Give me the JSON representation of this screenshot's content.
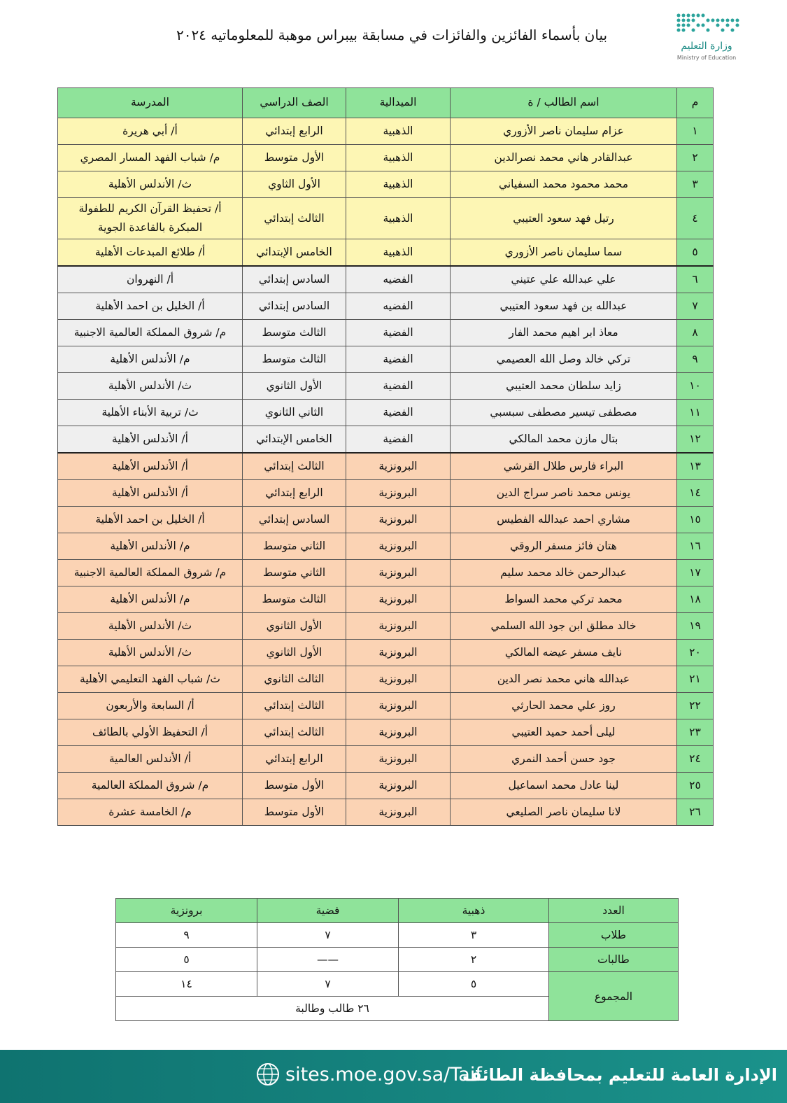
{
  "header": {
    "title": "بيان بأسماء الفائزين والفائزات في مسابقة بيبراس موهبة للمعلوماتيه ٢٠٢٤",
    "logo_ar": "وزارة التعليم",
    "logo_en": "Ministry of Education"
  },
  "table": {
    "columns": [
      "م",
      "اسم الطالب / ة",
      "الميدالية",
      "الصف الدراسي",
      "المدرسة"
    ],
    "sections": [
      {
        "color": "#fdf6b4",
        "rows": [
          [
            "١",
            "عزام سليمان ناصر الأزوري",
            "الذهبية",
            "الرابع إبتدائي",
            "أ/ أبي هريرة"
          ],
          [
            "٢",
            "عبدالقادر هاني محمد نصرالدين",
            "الذهبية",
            "الأول متوسط",
            "م/ شباب الفهد المسار المصري"
          ],
          [
            "٣",
            "محمد محمود محمد السفياني",
            "الذهبية",
            "الأول الثاوي",
            "ث/ الأندلس الأهلية"
          ],
          [
            "٤",
            "رتيل فهد سعود العتيبي",
            "الذهبية",
            "الثالث إبتدائي",
            "أ/ تحفيظ القرآن الكريم للطفولة المبكرة بالقاعدة الجوية"
          ],
          [
            "٥",
            "سما سليمان ناصر الأزوري",
            "الذهبية",
            "الخامس الإبتدائي",
            "أ/ طلائع المبدعات الأهلية"
          ]
        ]
      },
      {
        "color": "#efefef",
        "rows": [
          [
            "٦",
            "علي عبدالله علي عتيني",
            "الفضيه",
            "السادس إبتدائي",
            "أ/ النهروان"
          ],
          [
            "٧",
            "عبدالله بن فهد سعود العتيبي",
            "الفضيه",
            "السادس إبتدائي",
            "أ/ الخليل بن احمد الأهلية"
          ],
          [
            "٨",
            "معاذ ابر اهيم محمد الفار",
            "الفضية",
            "الثالث متوسط",
            "م/ شروق المملكة العالمية الاجنبية"
          ],
          [
            "٩",
            "تركي خالد وصل الله العصيمي",
            "الفضية",
            "الثالث متوسط",
            "م/ الأندلس الأهلية"
          ],
          [
            "١٠",
            "زايد سلطان محمد العتيبي",
            "الفضية",
            "الأول الثانوي",
            "ث/ الأندلس الأهلية"
          ],
          [
            "١١",
            "مصطفى تيسير مصطفى سبسبي",
            "الفضية",
            "الثاني الثانوي",
            "ث/ تربية الأبناء الأهلية"
          ],
          [
            "١٢",
            "بتال مازن محمد المالكي",
            "الفضية",
            "الخامس الإبتدائي",
            "أ/ الأندلس الأهلية"
          ]
        ]
      },
      {
        "color": "#fbd3b4",
        "rows": [
          [
            "١٣",
            "البراء فارس طلال القرشي",
            "البرونزية",
            "الثالث إبتدائي",
            "أ/ الأندلس الأهلية"
          ],
          [
            "١٤",
            "يونس محمد ناصر سراج الدين",
            "البرونزية",
            "الرابع إبتدائي",
            "أ/ الأندلس الأهلية"
          ],
          [
            "١٥",
            "مشاري احمد عبدالله الفطيس",
            "البرونزية",
            "السادس إبتدائي",
            "أ/ الخليل بن احمد الأهلية"
          ],
          [
            "١٦",
            "هتان فائز مسفر الروقي",
            "البرونزية",
            "الثاني متوسط",
            "م/ الأندلس الأهلية"
          ],
          [
            "١٧",
            "عبدالرحمن خالد محمد سليم",
            "البرونزية",
            "الثاني متوسط",
            "م/ شروق المملكة العالمية الاجنبية"
          ],
          [
            "١٨",
            "محمد تركي محمد السواط",
            "البرونزية",
            "الثالث متوسط",
            "م/ الأندلس الأهلية"
          ],
          [
            "١٩",
            "خالد مطلق ابن جود الله السلمي",
            "البرونزية",
            "الأول الثانوي",
            "ث/ الأندلس الأهلية"
          ],
          [
            "٢٠",
            "نايف مسفر عيضه المالكي",
            "البرونزية",
            "الأول الثانوي",
            "ث/ الأندلس الأهلية"
          ],
          [
            "٢١",
            "عبدالله هاني محمد نصر الدين",
            "البرونزية",
            "الثالث الثانوي",
            "ث/ شباب الفهد التعليمي الأهلية"
          ],
          [
            "٢٢",
            "روز علي محمد الحارثي",
            "البرونزية",
            "الثالث إبتدائي",
            "أ/ السابعة والأربعون"
          ],
          [
            "٢٣",
            "ليلى أحمد حميد العتيبي",
            "البرونزية",
            "الثالث إبتدائي",
            "أ/ التحفيظ الأولي بالطائف"
          ],
          [
            "٢٤",
            "جود حسن أحمد النمري",
            "البرونزية",
            "الرابع إبتدائي",
            "أ/ الأندلس العالمية"
          ],
          [
            "٢٥",
            "لينا عادل محمد اسماعيل",
            "البرونزية",
            "الأول متوسط",
            "م/ شروق المملكة العالمية"
          ],
          [
            "٢٦",
            "لانا سليمان ناصر الصليعي",
            "البرونزية",
            "الأول متوسط",
            "م/ الخامسة عشرة"
          ]
        ]
      }
    ]
  },
  "summary": {
    "columns": [
      "العدد",
      "ذهبية",
      "فضية",
      "برونزية"
    ],
    "rows": [
      [
        "طلاب",
        "٣",
        "٧",
        "٩"
      ],
      [
        "طالبات",
        "٢",
        "——",
        "٥"
      ]
    ],
    "total_label": "المجموع",
    "total": [
      "٥",
      "٧",
      "١٤"
    ],
    "grand_total": "٢٦ طالب وطالبة"
  },
  "footer": {
    "office": "الإدارة العامة للتعليم بمحافظة الطائف",
    "url": "sites.moe.gov.sa/Taif"
  }
}
